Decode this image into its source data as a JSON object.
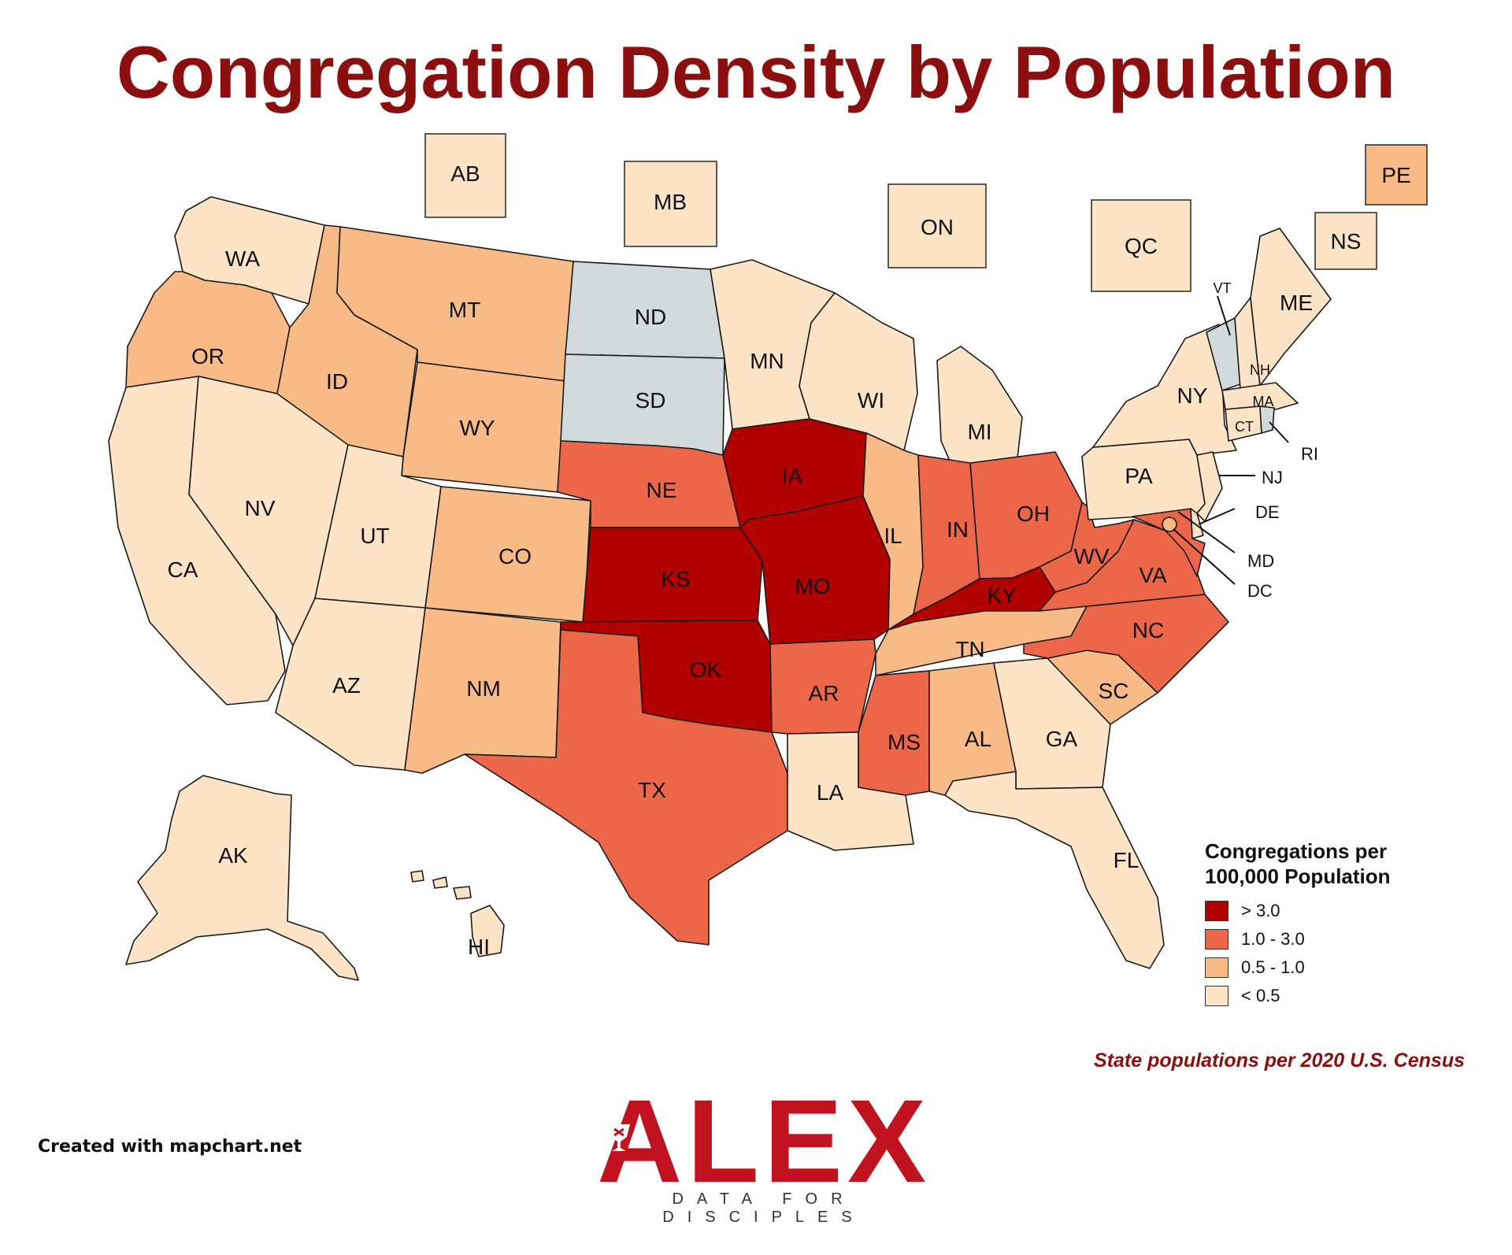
{
  "title": "Congregation Density by Population",
  "legend": {
    "title_line1": "Congregations per",
    "title_line2": "100,000 Population",
    "items": [
      {
        "label": "> 3.0",
        "color": "#b00000"
      },
      {
        "label": "1.0 - 3.0",
        "color": "#ec664a"
      },
      {
        "label": "0.5 - 1.0",
        "color": "#f8bb87"
      },
      {
        "label": "< 0.5",
        "color": "#fde4c6"
      }
    ]
  },
  "no_data_color": "#d3dadc",
  "source_note": "State populations per 2020 U.S. Census",
  "credit": "Created with mapchart.net",
  "logo": {
    "word": "ALEX",
    "tagline": "DATA FOR DISCIPLES"
  },
  "regions": [
    {
      "code": "WA",
      "category": "< 0.5"
    },
    {
      "code": "OR",
      "category": "0.5 - 1.0"
    },
    {
      "code": "CA",
      "category": "< 0.5"
    },
    {
      "code": "ID",
      "category": "0.5 - 1.0"
    },
    {
      "code": "NV",
      "category": "< 0.5"
    },
    {
      "code": "MT",
      "category": "0.5 - 1.0"
    },
    {
      "code": "WY",
      "category": "0.5 - 1.0"
    },
    {
      "code": "UT",
      "category": "< 0.5"
    },
    {
      "code": "CO",
      "category": "0.5 - 1.0"
    },
    {
      "code": "AZ",
      "category": "< 0.5"
    },
    {
      "code": "NM",
      "category": "0.5 - 1.0"
    },
    {
      "code": "ND",
      "category": "none"
    },
    {
      "code": "SD",
      "category": "none"
    },
    {
      "code": "NE",
      "category": "1.0 - 3.0"
    },
    {
      "code": "KS",
      "category": "> 3.0"
    },
    {
      "code": "OK",
      "category": "> 3.0"
    },
    {
      "code": "TX",
      "category": "1.0 - 3.0"
    },
    {
      "code": "MN",
      "category": "< 0.5"
    },
    {
      "code": "IA",
      "category": "> 3.0"
    },
    {
      "code": "MO",
      "category": "> 3.0"
    },
    {
      "code": "AR",
      "category": "1.0 - 3.0"
    },
    {
      "code": "LA",
      "category": "< 0.5"
    },
    {
      "code": "WI",
      "category": "< 0.5"
    },
    {
      "code": "IL",
      "category": "0.5 - 1.0"
    },
    {
      "code": "MI",
      "category": "< 0.5"
    },
    {
      "code": "IN",
      "category": "1.0 - 3.0"
    },
    {
      "code": "OH",
      "category": "1.0 - 3.0"
    },
    {
      "code": "KY",
      "category": "> 3.0"
    },
    {
      "code": "TN",
      "category": "0.5 - 1.0"
    },
    {
      "code": "MS",
      "category": "1.0 - 3.0"
    },
    {
      "code": "AL",
      "category": "0.5 - 1.0"
    },
    {
      "code": "GA",
      "category": "< 0.5"
    },
    {
      "code": "FL",
      "category": "< 0.5"
    },
    {
      "code": "SC",
      "category": "0.5 - 1.0"
    },
    {
      "code": "NC",
      "category": "1.0 - 3.0"
    },
    {
      "code": "VA",
      "category": "1.0 - 3.0"
    },
    {
      "code": "WV",
      "category": "1.0 - 3.0"
    },
    {
      "code": "PA",
      "category": "< 0.5"
    },
    {
      "code": "NY",
      "category": "< 0.5"
    },
    {
      "code": "VT",
      "category": "none"
    },
    {
      "code": "NH",
      "category": "< 0.5"
    },
    {
      "code": "ME",
      "category": "< 0.5"
    },
    {
      "code": "MA",
      "category": "< 0.5"
    },
    {
      "code": "CT",
      "category": "< 0.5"
    },
    {
      "code": "RI",
      "category": "none"
    },
    {
      "code": "NJ",
      "category": "< 0.5"
    },
    {
      "code": "DE",
      "category": "< 0.5"
    },
    {
      "code": "MD",
      "category": "1.0 - 3.0"
    },
    {
      "code": "DC",
      "category": "0.5 - 1.0"
    },
    {
      "code": "AK",
      "category": "< 0.5"
    },
    {
      "code": "HI",
      "category": "< 0.5"
    },
    {
      "code": "AB",
      "category": "< 0.5"
    },
    {
      "code": "MB",
      "category": "< 0.5"
    },
    {
      "code": "ON",
      "category": "< 0.5"
    },
    {
      "code": "QC",
      "category": "< 0.5"
    },
    {
      "code": "NS",
      "category": "< 0.5"
    },
    {
      "code": "PE",
      "category": "0.5 - 1.0"
    }
  ]
}
